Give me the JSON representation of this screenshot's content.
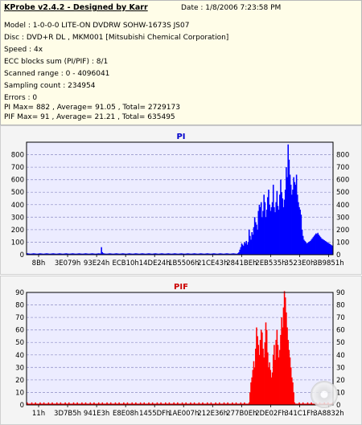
{
  "app": {
    "title": "KProbe v2.4.2 - Designed by Karr",
    "date": "Date : 1/8/2006 7:23:58 PM"
  },
  "info_lines": [
    "Model : 1-0-0-0 LITE-ON DVDRW SOHW-1673S JS07",
    "Disc : DVD+R DL , MKM001 [Mitsubishi Chemical Corporation]",
    "Speed : 4x",
    "ECC blocks sum (PI/PIF) : 8/1",
    "Scanned range : 0 - 4096041",
    "Sampling count : 234954",
    "Errors : 0",
    "PI Max= 882 , Average= 91.05 , Total= 2729173",
    "PIF Max= 91 , Average= 21.21 , Total= 635495"
  ],
  "colors": {
    "pi": "#0000ff",
    "pif": "#ff0000",
    "plot_bg": "#ececff",
    "grid": "#9a9acd"
  },
  "chart_data": [
    {
      "type": "area",
      "title": "PI",
      "ylim": [
        0,
        900
      ],
      "yticks": [
        "0",
        "100",
        "200",
        "300",
        "400",
        "500",
        "600",
        "700",
        "800"
      ],
      "x_tick_labels": [
        "8Bh",
        "3E079h",
        "93E24h",
        "ECB10h",
        "14DE24h",
        "1B5506h",
        "21CE43h",
        "2841BEh",
        "2EB535h",
        "3523E0h",
        "3B9851h"
      ],
      "series": [
        {
          "values": [
            12,
            10,
            9,
            8,
            8,
            9,
            10,
            11,
            10,
            9,
            8,
            8,
            9,
            10,
            11,
            10,
            9,
            8,
            8,
            9,
            10,
            11,
            10,
            9,
            8,
            8,
            9,
            10,
            11,
            10,
            9,
            8,
            8,
            9,
            10,
            11,
            10,
            9,
            8,
            8,
            9,
            10,
            11,
            10,
            9,
            8,
            8,
            9,
            10,
            11,
            10,
            9,
            8,
            8,
            9,
            10,
            11,
            10,
            9,
            8,
            8,
            9,
            10,
            11,
            10,
            9,
            8,
            8,
            9,
            10,
            11,
            10,
            9,
            8,
            8,
            9,
            10,
            11,
            10,
            9,
            60,
            20,
            12,
            10,
            9,
            8,
            8,
            9,
            10,
            11,
            10,
            9,
            8,
            8,
            9,
            10,
            11,
            10,
            9,
            8,
            8,
            9,
            10,
            11,
            10,
            9,
            8,
            8,
            9,
            10,
            11,
            10,
            9,
            8,
            8,
            9,
            10,
            11,
            10,
            9,
            8,
            8,
            9,
            10,
            11,
            10,
            9,
            8,
            8,
            9,
            10,
            11,
            10,
            9,
            8,
            8,
            9,
            10,
            11,
            10,
            9,
            8,
            8,
            9,
            10,
            11,
            10,
            9,
            8,
            8,
            9,
            10,
            11,
            10,
            9,
            8,
            8,
            9,
            10,
            11,
            10,
            9,
            8,
            8,
            9,
            10,
            11,
            10,
            9,
            8,
            8,
            9,
            10,
            11,
            10,
            9,
            8,
            8,
            9,
            10,
            11,
            10,
            9,
            8,
            8,
            9,
            10,
            11,
            10,
            9,
            8,
            8,
            9,
            10,
            11,
            10,
            9,
            8,
            8,
            9,
            10,
            11,
            10,
            9,
            8,
            8,
            9,
            10,
            11,
            10,
            9,
            8,
            8,
            9,
            10,
            11,
            10,
            9,
            8,
            8,
            9,
            10,
            11,
            10,
            9,
            8,
            8,
            12,
            20,
            40,
            60,
            90,
            80,
            70,
            100,
            90,
            110,
            80,
            100,
            200,
            150,
            120,
            180,
            160,
            220,
            300,
            260,
            240,
            200,
            350,
            400,
            380,
            420,
            300,
            350,
            480,
            420,
            300,
            360,
            460,
            520,
            400,
            350,
            380,
            420,
            560,
            380,
            340,
            420,
            510,
            390,
            360,
            480,
            600,
            500,
            450,
            380,
            440,
            520,
            700,
            620,
            882,
            760,
            640,
            560,
            480,
            520,
            620,
            580,
            560,
            640,
            480,
            420,
            380,
            360,
            320,
            200,
            150,
            120,
            110,
            100,
            90,
            95,
            100,
            105,
            110,
            120,
            130,
            140,
            150,
            160,
            170,
            165,
            175,
            160,
            150,
            140,
            130,
            125,
            120,
            115,
            110,
            105,
            100,
            95,
            90,
            85,
            80,
            75,
            70
          ]
        }
      ]
    },
    {
      "type": "area",
      "title": "PIF",
      "ylim": [
        0,
        90
      ],
      "yticks": [
        "0",
        "10",
        "20",
        "30",
        "40",
        "50",
        "60",
        "70",
        "80",
        "90"
      ],
      "x_tick_labels": [
        "11h",
        "3D7B5h",
        "941E3h",
        "E8E08h",
        "1455DFh",
        "1AE007h",
        "212E36h",
        "277B0Eh",
        "2DE02Fh",
        "341C1Fh",
        "3A8832h"
      ],
      "series": [
        {
          "values": [
            2,
            1,
            1,
            1,
            1,
            2,
            1,
            1,
            1,
            2,
            1,
            1,
            1,
            1,
            2,
            1,
            1,
            1,
            2,
            1,
            1,
            1,
            1,
            2,
            1,
            1,
            1,
            2,
            1,
            1,
            1,
            1,
            2,
            1,
            1,
            1,
            2,
            1,
            1,
            1,
            1,
            2,
            1,
            1,
            1,
            2,
            1,
            1,
            1,
            1,
            2,
            1,
            1,
            1,
            2,
            1,
            1,
            1,
            1,
            2,
            1,
            1,
            1,
            2,
            1,
            1,
            1,
            1,
            2,
            1,
            1,
            1,
            2,
            1,
            1,
            1,
            1,
            2,
            1,
            1,
            1,
            2,
            1,
            1,
            1,
            1,
            2,
            1,
            1,
            1,
            2,
            1,
            1,
            1,
            1,
            2,
            1,
            1,
            1,
            2,
            1,
            1,
            1,
            1,
            2,
            1,
            1,
            1,
            2,
            1,
            1,
            1,
            1,
            2,
            1,
            1,
            1,
            2,
            1,
            1,
            1,
            1,
            2,
            1,
            1,
            1,
            2,
            1,
            1,
            1,
            1,
            2,
            1,
            1,
            1,
            2,
            1,
            1,
            1,
            1,
            2,
            1,
            1,
            1,
            2,
            1,
            1,
            1,
            1,
            2,
            1,
            1,
            1,
            2,
            1,
            1,
            1,
            1,
            2,
            1,
            1,
            1,
            2,
            1,
            1,
            1,
            1,
            2,
            1,
            1,
            1,
            2,
            1,
            1,
            1,
            1,
            2,
            1,
            1,
            1,
            2,
            1,
            1,
            1,
            1,
            2,
            1,
            1,
            1,
            2,
            1,
            1,
            1,
            1,
            2,
            1,
            1,
            1,
            2,
            1,
            1,
            1,
            1,
            2,
            1,
            1,
            1,
            2,
            1,
            1,
            1,
            1,
            2,
            1,
            1,
            1,
            2,
            1,
            1,
            1,
            1,
            2,
            1,
            1,
            1,
            2,
            1,
            1,
            1,
            1,
            2,
            1,
            1,
            1,
            2,
            1,
            1,
            1,
            1,
            2,
            10,
            18,
            22,
            28,
            35,
            30,
            45,
            62,
            55,
            48,
            40,
            52,
            60,
            58,
            45,
            38,
            50,
            66,
            60,
            42,
            30,
            34,
            28,
            22,
            26,
            40,
            48,
            36,
            52,
            60,
            48,
            38,
            44,
            56,
            70,
            62,
            78,
            91,
            86,
            74,
            62,
            52,
            44,
            38,
            30,
            22,
            18,
            10,
            2,
            1,
            1,
            1,
            1,
            2,
            1,
            1,
            1,
            2,
            1,
            1,
            1,
            1,
            2,
            1,
            1,
            1,
            2,
            1,
            1,
            1,
            1,
            2,
            1,
            1,
            1,
            2,
            1,
            1,
            1,
            1,
            2,
            1,
            1,
            1,
            2,
            1,
            1,
            1,
            1,
            2
          ]
        }
      ]
    }
  ]
}
